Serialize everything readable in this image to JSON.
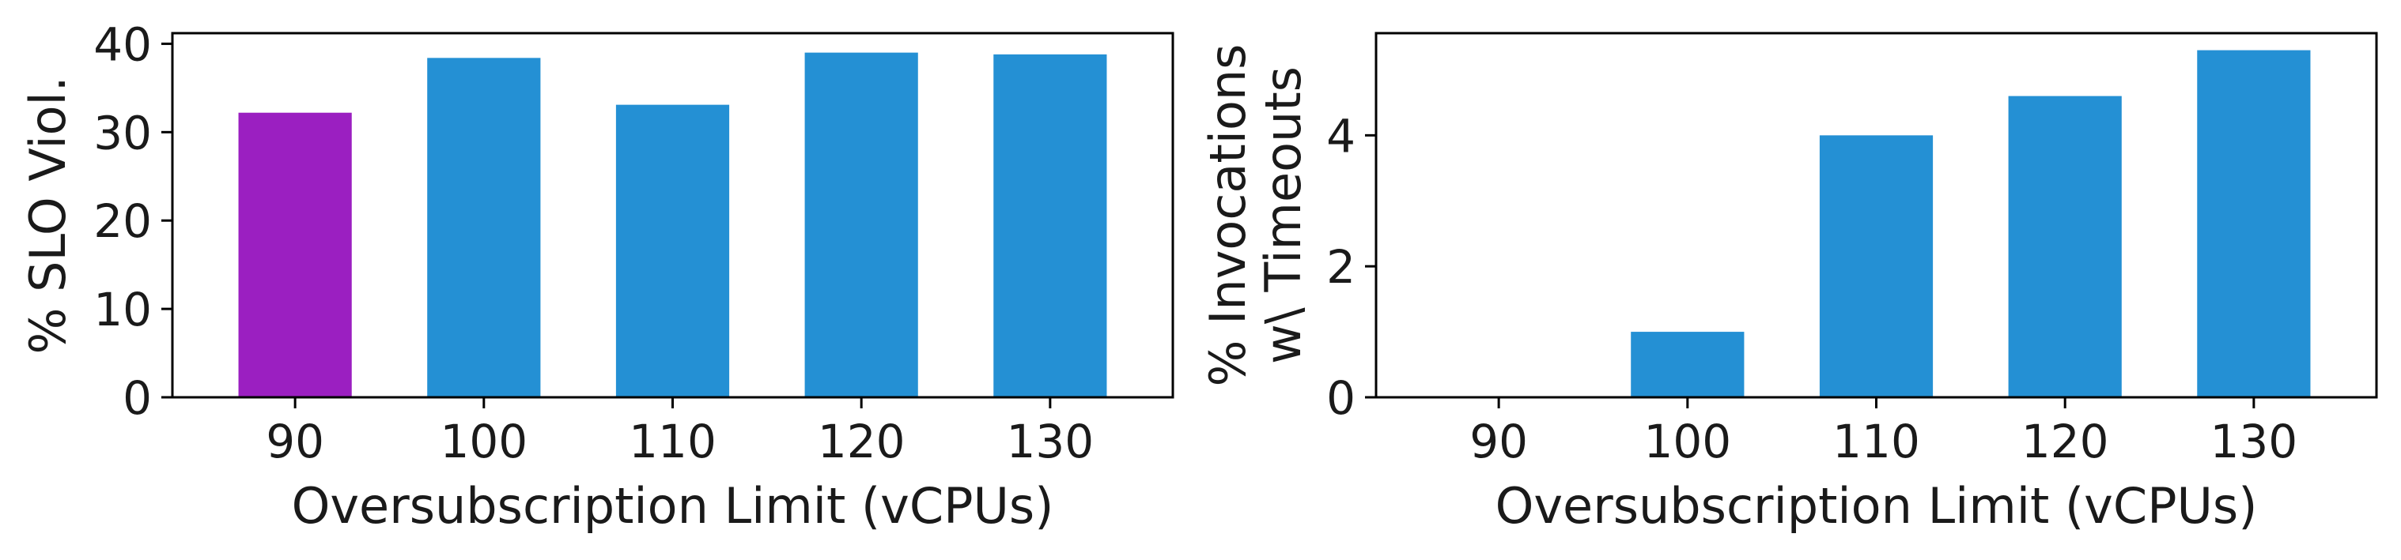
{
  "chart_data": [
    {
      "type": "bar",
      "categories": [
        "90",
        "100",
        "110",
        "120",
        "130"
      ],
      "values": [
        32.2,
        38.4,
        33.1,
        39.0,
        38.8
      ],
      "colors": [
        "#9b1fc1",
        "#2490d4",
        "#2490d4",
        "#2490d4",
        "#2490d4"
      ],
      "xlabel": "Oversubscription Limit (vCPUs)",
      "ylabel": [
        "% SLO Viol."
      ],
      "ylim": [
        0,
        41.2
      ],
      "yticks": [
        0,
        10,
        20,
        30,
        40
      ],
      "grid": false
    },
    {
      "type": "bar",
      "categories": [
        "90",
        "100",
        "110",
        "120",
        "130"
      ],
      "values": [
        0,
        1.0,
        4.0,
        4.6,
        5.3
      ],
      "colors": [
        "#2490d4",
        "#2490d4",
        "#2490d4",
        "#2490d4",
        "#2490d4"
      ],
      "xlabel": "Oversubscription Limit (vCPUs)",
      "ylabel": [
        "% Invocations",
        "w\\ Timeouts"
      ],
      "ylim": [
        0,
        5.56
      ],
      "yticks": [
        0,
        2,
        4
      ],
      "grid": false
    }
  ]
}
